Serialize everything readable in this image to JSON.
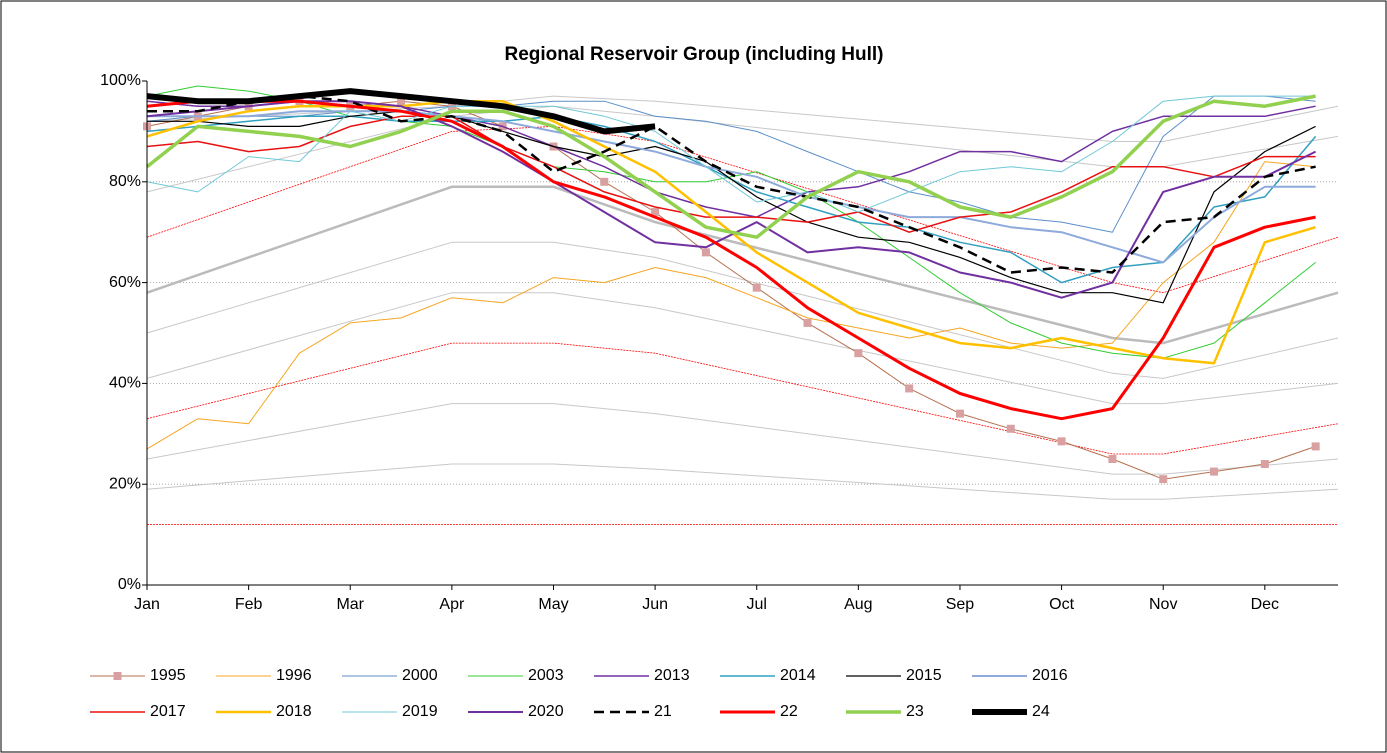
{
  "chart_data": {
    "type": "line",
    "title": "Regional Reservoir Group (including Hull)",
    "xlim": [
      0,
      11.72
    ],
    "xticks": [
      {
        "value": 0,
        "label": "Jan"
      },
      {
        "value": 1,
        "label": "Feb"
      },
      {
        "value": 2,
        "label": "Mar"
      },
      {
        "value": 3,
        "label": "Apr"
      },
      {
        "value": 4,
        "label": "May"
      },
      {
        "value": 5,
        "label": "Jun"
      },
      {
        "value": 6,
        "label": "Jul"
      },
      {
        "value": 7,
        "label": "Aug"
      },
      {
        "value": 8,
        "label": "Sep"
      },
      {
        "value": 9,
        "label": "Oct"
      },
      {
        "value": 10,
        "label": "Nov"
      },
      {
        "value": 11,
        "label": "Dec"
      }
    ],
    "ylim": [
      0,
      100
    ],
    "yticks": [
      {
        "value": 0,
        "label": "0%"
      },
      {
        "value": 20,
        "label": "20%"
      },
      {
        "value": 40,
        "label": "40%"
      },
      {
        "value": 60,
        "label": "60%"
      },
      {
        "value": 80,
        "label": "80%"
      },
      {
        "value": 100,
        "label": "100%"
      }
    ],
    "grid": true,
    "x": [
      0,
      0.5,
      1,
      1.5,
      2,
      2.5,
      3,
      3.5,
      4,
      4.5,
      5,
      5.5,
      6,
      6.5,
      7,
      7.5,
      8,
      8.5,
      9,
      9.5,
      10,
      10.5,
      11,
      11.5
    ],
    "reference_x": [
      0,
      3,
      4,
      5,
      9.5,
      10,
      11.72
    ],
    "reference_curves": [
      {
        "color": "#bbbbbb",
        "line_width": 2.5,
        "values": [
          58,
          79,
          79,
          72,
          49,
          48,
          58
        ]
      },
      {
        "color": "#c8c8c8",
        "line_width": 1,
        "values": [
          19,
          24,
          24,
          23,
          17,
          17,
          19
        ]
      },
      {
        "color": "#c8c8c8",
        "line_width": 1,
        "values": [
          25,
          36,
          36,
          34,
          22,
          22,
          25
        ]
      },
      {
        "color": "#c8c8c8",
        "line_width": 1,
        "values": [
          41,
          58,
          58,
          55,
          36,
          36,
          40
        ]
      },
      {
        "color": "#c8c8c8",
        "line_width": 1,
        "values": [
          50,
          68,
          68,
          65,
          42,
          41,
          49
        ]
      },
      {
        "color": "#c8c8c8",
        "line_width": 1,
        "values": [
          78,
          93,
          95,
          93,
          83,
          83,
          89
        ]
      },
      {
        "color": "#c8c8c8",
        "line_width": 1,
        "values": [
          92,
          95,
          97,
          96,
          88,
          88,
          95
        ]
      },
      {
        "color": "#ff0000",
        "line_width": 0.8,
        "values": [
          12,
          12,
          12,
          12,
          12,
          12,
          12
        ]
      },
      {
        "color": "#ff0000",
        "line_width": 0.8,
        "values": [
          33,
          48,
          48,
          46,
          26,
          26,
          32
        ]
      },
      {
        "color": "#ff0000",
        "line_width": 0.8,
        "values": [
          69,
          90,
          91,
          88,
          60,
          58,
          69
        ]
      }
    ],
    "series": [
      {
        "name": "1995",
        "color": "#b5704f",
        "line_width": 1,
        "marker": "square",
        "values": [
          91,
          93,
          95,
          96,
          95,
          96,
          95,
          91,
          87,
          80,
          74,
          66,
          59,
          52,
          46,
          39,
          34,
          31,
          28.5,
          25,
          21,
          22.5,
          24,
          27.5
        ]
      },
      {
        "name": "1996",
        "color": "#f5a623",
        "line_width": 1,
        "values": [
          27,
          33,
          32,
          46,
          52,
          53,
          57,
          56,
          61,
          60,
          63,
          61,
          57,
          53,
          51,
          49,
          51,
          48,
          47,
          48,
          60,
          68,
          84,
          83
        ]
      },
      {
        "name": "2000",
        "color": "#5b8fc7",
        "line_width": 1,
        "values": [
          92,
          93,
          93,
          93,
          94,
          94,
          95,
          95,
          96,
          96,
          93,
          92,
          90,
          86,
          82,
          78,
          76,
          73,
          72,
          70,
          89,
          97,
          97,
          96
        ]
      },
      {
        "name": "2003",
        "color": "#33cc33",
        "line_width": 1,
        "values": [
          97,
          99,
          98,
          96,
          93,
          92,
          91,
          87,
          83,
          82,
          80,
          80,
          82,
          78,
          72,
          65,
          58,
          52,
          48,
          46,
          45,
          48,
          56,
          64
        ]
      },
      {
        "name": "2013",
        "color": "#7030a0",
        "line_width": 1.5,
        "values": [
          96,
          95,
          95,
          96,
          96,
          95,
          93,
          91,
          87,
          83,
          78,
          75,
          73,
          78,
          79,
          82,
          86,
          86,
          84,
          90,
          93,
          93,
          93,
          95
        ]
      },
      {
        "name": "2014",
        "color": "#31a0c0",
        "line_width": 1.5,
        "values": [
          90,
          91,
          92,
          93,
          93,
          92,
          92,
          92,
          93,
          91,
          88,
          83,
          78,
          75,
          72,
          71,
          68,
          66,
          60,
          63,
          64,
          75,
          77,
          89
        ]
      },
      {
        "name": "2015",
        "color": "#000000",
        "line_width": 1.2,
        "values": [
          92,
          92,
          91,
          91,
          93,
          94,
          93,
          90,
          87,
          85,
          87,
          84,
          77,
          72,
          69,
          68,
          65,
          61,
          58,
          58,
          56,
          78,
          86,
          91
        ]
      },
      {
        "name": "2016",
        "color": "#8eaadb",
        "line_width": 2,
        "values": [
          93,
          93,
          93,
          94,
          94,
          94,
          93,
          92,
          90,
          88,
          86,
          83,
          81,
          77,
          75,
          73,
          73,
          71,
          70,
          67,
          64,
          73,
          79,
          79
        ]
      },
      {
        "name": "2017",
        "color": "#e81010",
        "line_width": 1.5,
        "values": [
          87,
          88,
          86,
          87,
          91,
          93,
          93,
          87,
          83,
          78,
          75,
          73,
          73,
          72,
          74,
          70,
          73,
          74,
          78,
          83,
          83,
          81,
          85,
          85
        ]
      },
      {
        "name": "2018",
        "color": "#ffc000",
        "line_width": 2.5,
        "values": [
          89,
          92,
          94,
          95,
          95,
          95,
          96,
          96,
          92,
          87,
          82,
          74,
          66,
          60,
          54,
          51,
          48,
          47,
          49,
          47,
          45,
          44,
          68,
          71
        ]
      },
      {
        "name": "2019",
        "color": "#70c8d8",
        "line_width": 1,
        "values": [
          80,
          78,
          85,
          84,
          94,
          92,
          95,
          95,
          95,
          93,
          90,
          83,
          76,
          78,
          74,
          78,
          82,
          83,
          82,
          88,
          96,
          97,
          97,
          97
        ]
      },
      {
        "name": "2020",
        "color": "#7030a0",
        "line_width": 2,
        "values": [
          93,
          94,
          95,
          96,
          96,
          95,
          91,
          86,
          80,
          74,
          68,
          67,
          72,
          66,
          67,
          66,
          62,
          60,
          57,
          60,
          78,
          81,
          81,
          86
        ]
      },
      {
        "name": "21",
        "color": "#000000",
        "line_width": 2.5,
        "dash": true,
        "values": [
          94,
          94,
          96,
          97,
          96,
          92,
          93,
          90,
          82,
          86,
          91,
          84,
          79,
          77,
          75,
          71,
          67,
          62,
          63,
          62,
          72,
          73,
          81,
          83
        ]
      },
      {
        "name": "22",
        "color": "#ff0000",
        "line_width": 3,
        "values": [
          95,
          96,
          96,
          96,
          95,
          94,
          92,
          87,
          80,
          77,
          73,
          69,
          63,
          55,
          49,
          43,
          38,
          35,
          33,
          35,
          49,
          67,
          71,
          73
        ]
      },
      {
        "name": "23",
        "color": "#92d050",
        "line_width": 3.5,
        "values": [
          83,
          91,
          90,
          89,
          87,
          90,
          94,
          94,
          91,
          85,
          78,
          71,
          69,
          77,
          82,
          80,
          75,
          73,
          77,
          82,
          92,
          96,
          95,
          97
        ]
      },
      {
        "name": "24",
        "color": "#000000",
        "line_width": 6,
        "values": [
          97,
          96,
          96,
          97,
          98,
          97,
          96,
          95,
          93,
          90,
          91,
          null,
          null,
          null,
          null,
          null,
          null,
          null,
          null,
          null,
          null,
          null,
          null,
          null
        ]
      }
    ]
  }
}
